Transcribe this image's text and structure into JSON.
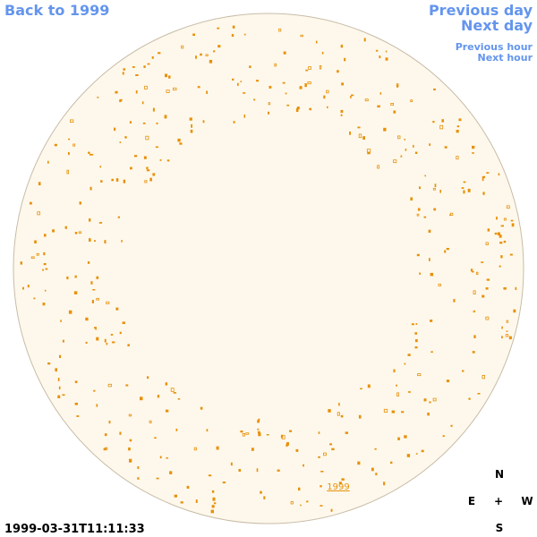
{
  "nav": {
    "back": "Back to 1999",
    "previous_day": "Previous day",
    "next_day": "Next day",
    "previous_hour": "Previous hour",
    "next_hour": "Next hour"
  },
  "compass": {
    "north": "N",
    "east": "E",
    "center": "+",
    "west": "W",
    "south": "S"
  },
  "timestamp": "1999-03-31T11:11:33",
  "year_link": "1999"
}
